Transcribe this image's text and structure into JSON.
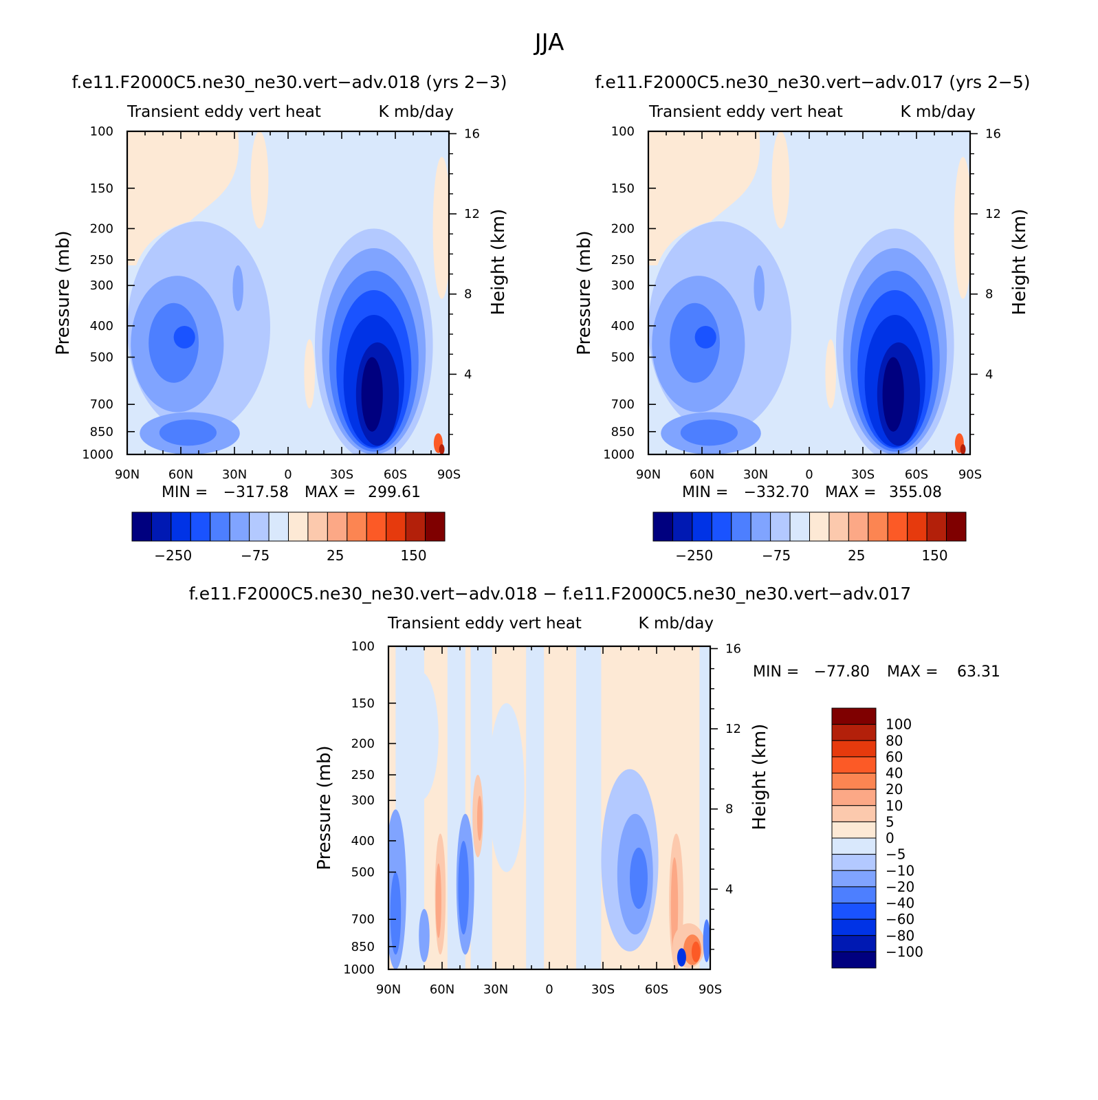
{
  "figure": {
    "title": "JJA"
  },
  "palettes": {
    "abs": [
      "#00007f",
      "#0019b3",
      "#0033e6",
      "#1a53ff",
      "#4d7fff",
      "#80a4ff",
      "#b3c9ff",
      "#d9e8fc",
      "#fde9d5",
      "#fcc9ad",
      "#fca886",
      "#fc8552",
      "#fc5a26",
      "#e63a0d",
      "#b3200a",
      "#7f0000"
    ],
    "diff": [
      "#00007f",
      "#0019b3",
      "#0033e6",
      "#1a53ff",
      "#4d7fff",
      "#80a4ff",
      "#b3c9ff",
      "#d9e8fc",
      "#fde9d5",
      "#fcc9ad",
      "#fca886",
      "#fc8552",
      "#fc5a26",
      "#e63a0d",
      "#b3200a",
      "#7f0000"
    ]
  },
  "chart_data": [
    {
      "type": "heatmap",
      "panel": "top-left",
      "title": "f.e11.F2000C5.ne30_ne30.vert−adv.018 (yrs 2−3)",
      "subtitle": "Transient eddy vert heat",
      "units": "K mb/day",
      "xlabel": "",
      "ylabel": "Pressure (mb)",
      "y2label": "Height (km)",
      "xticks": [
        "90N",
        "60N",
        "30N",
        "0",
        "30S",
        "60S",
        "90S"
      ],
      "xticks_values": [
        90,
        60,
        30,
        0,
        -30,
        -60,
        -90
      ],
      "yticks": [
        "100",
        "150",
        "200",
        "250",
        "300",
        "400",
        "500",
        "700",
        "850",
        "1000"
      ],
      "yticks_values": [
        100,
        150,
        200,
        250,
        300,
        400,
        500,
        700,
        850,
        1000
      ],
      "y2ticks": [
        "16",
        "12",
        "8",
        "4"
      ],
      "y2ticks_values": [
        16,
        12,
        8,
        4
      ],
      "ylim": [
        1000,
        100
      ],
      "y_scale": "log",
      "stats_min_label": "MIN =",
      "stats_max_label": "MAX =",
      "min": "−317.58",
      "max": "299.61",
      "colorbar": {
        "orientation": "horizontal",
        "labels": [
          "−250",
          "−75",
          "25",
          "150"
        ]
      },
      "features": [
        {
          "lat": 64,
          "p": 460,
          "value": -30,
          "note": "NH upper blue core"
        },
        {
          "lat": 56,
          "p": 840,
          "value": -40,
          "note": "NH low-level blue core"
        },
        {
          "lat": -47,
          "p": 620,
          "value": -250,
          "note": "SH storm track core"
        },
        {
          "lat": -82,
          "p": 950,
          "value": 150,
          "note": "Antarctic coast positive"
        }
      ]
    },
    {
      "type": "heatmap",
      "panel": "top-right",
      "title": "f.e11.F2000C5.ne30_ne30.vert−adv.017 (yrs 2−5)",
      "subtitle": "Transient eddy vert heat",
      "units": "K mb/day",
      "xlabel": "",
      "ylabel": "Pressure (mb)",
      "y2label": "Height (km)",
      "xticks": [
        "90N",
        "60N",
        "30N",
        "0",
        "30S",
        "60S",
        "90S"
      ],
      "xticks_values": [
        90,
        60,
        30,
        0,
        -30,
        -60,
        -90
      ],
      "yticks": [
        "100",
        "150",
        "200",
        "250",
        "300",
        "400",
        "500",
        "700",
        "850",
        "1000"
      ],
      "yticks_values": [
        100,
        150,
        200,
        250,
        300,
        400,
        500,
        700,
        850,
        1000
      ],
      "y2ticks": [
        "16",
        "12",
        "8",
        "4"
      ],
      "y2ticks_values": [
        16,
        12,
        8,
        4
      ],
      "ylim": [
        1000,
        100
      ],
      "y_scale": "log",
      "stats_min_label": "MIN =",
      "stats_max_label": "MAX =",
      "min": "−332.70",
      "max": "355.08",
      "colorbar": {
        "orientation": "horizontal",
        "labels": [
          "−250",
          "−75",
          "25",
          "150"
        ]
      },
      "features": [
        {
          "lat": 64,
          "p": 460,
          "value": -30,
          "note": "NH upper blue core"
        },
        {
          "lat": 56,
          "p": 840,
          "value": -40,
          "note": "NH low-level blue core"
        },
        {
          "lat": -47,
          "p": 620,
          "value": -250,
          "note": "SH storm track core"
        },
        {
          "lat": -82,
          "p": 950,
          "value": 150,
          "note": "Antarctic coast positive"
        }
      ]
    },
    {
      "type": "heatmap",
      "panel": "bottom",
      "title": "f.e11.F2000C5.ne30_ne30.vert−adv.018 − f.e11.F2000C5.ne30_ne30.vert−adv.017",
      "subtitle": "Transient eddy vert heat",
      "units": "K mb/day",
      "xlabel": "",
      "ylabel": "Pressure (mb)",
      "y2label": "Height (km)",
      "xticks": [
        "90N",
        "60N",
        "30N",
        "0",
        "30S",
        "60S",
        "90S"
      ],
      "xticks_values": [
        90,
        60,
        30,
        0,
        -30,
        -60,
        -90
      ],
      "yticks": [
        "100",
        "150",
        "200",
        "250",
        "300",
        "400",
        "500",
        "700",
        "850",
        "1000"
      ],
      "yticks_values": [
        100,
        150,
        200,
        250,
        300,
        400,
        500,
        700,
        850,
        1000
      ],
      "y2ticks": [
        "16",
        "12",
        "8",
        "4"
      ],
      "y2ticks_values": [
        16,
        12,
        8,
        4
      ],
      "ylim": [
        1000,
        100
      ],
      "y_scale": "log",
      "stats_min_label": "MIN =",
      "stats_max_label": "MAX =",
      "min": "−77.80",
      "max": "63.31",
      "colorbar": {
        "orientation": "vertical",
        "labels": [
          "100",
          "80",
          "60",
          "40",
          "20",
          "10",
          "5",
          "0",
          "−5",
          "−10",
          "−20",
          "−40",
          "−60",
          "−80",
          "−100"
        ]
      },
      "features": [
        {
          "lat": -50,
          "p": 500,
          "value": -20,
          "note": "SH midlat negative band"
        },
        {
          "lat": -75,
          "p": 900,
          "value": 40,
          "note": "Antarctic low-level positive"
        },
        {
          "lat": 62,
          "p": 550,
          "value": 10,
          "note": "NH positive streak"
        }
      ]
    }
  ]
}
